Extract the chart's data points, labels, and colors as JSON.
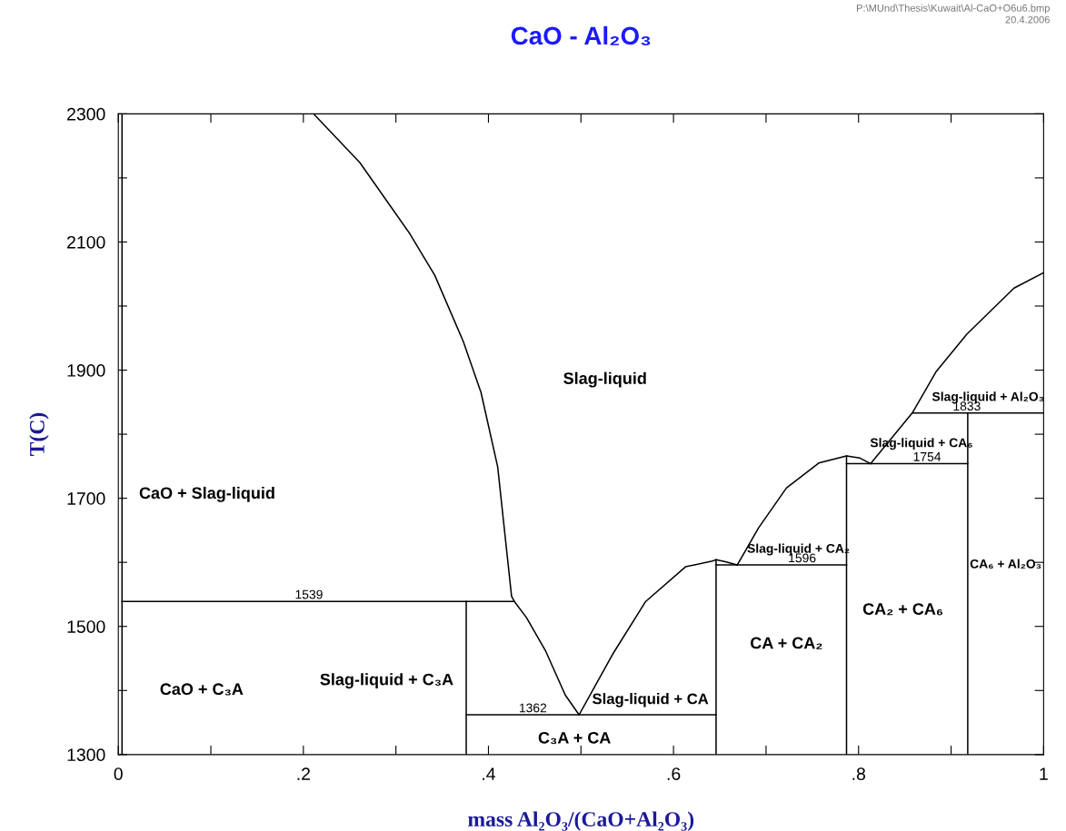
{
  "chart_data": {
    "type": "line",
    "title": "CaO - Al₂O₃",
    "xlabel": "mass Al₂O₃/(CaO+Al₂O₃)",
    "ylabel": "T(C)",
    "xlim": [
      0,
      1
    ],
    "ylim": [
      1300,
      2300
    ],
    "xticks": [
      {
        "value": 0,
        "label": "0"
      },
      {
        "value": 0.1,
        "label": null
      },
      {
        "value": 0.2,
        "label": ".2"
      },
      {
        "value": 0.3,
        "label": null
      },
      {
        "value": 0.4,
        "label": ".4"
      },
      {
        "value": 0.5,
        "label": null
      },
      {
        "value": 0.6,
        "label": ".6"
      },
      {
        "value": 0.7,
        "label": null
      },
      {
        "value": 0.8,
        "label": ".8"
      },
      {
        "value": 0.9,
        "label": null
      },
      {
        "value": 1,
        "label": "1"
      }
    ],
    "yticks": [
      1300,
      {
        "value": 1400,
        "label": null
      },
      1500,
      {
        "value": 1600,
        "label": null
      },
      1700,
      {
        "value": 1800,
        "label": null
      },
      1900,
      {
        "value": 2000,
        "label": null
      },
      2100,
      {
        "value": 2200,
        "label": null
      },
      2300
    ],
    "grid": false,
    "legend": false,
    "marker": "none",
    "line_style": "solid",
    "series": [
      {
        "color": "#000000",
        "x": [
          0.004,
          0.004
        ],
        "values": [
          1300,
          2300
        ]
      },
      {
        "color": "#000000",
        "x": [
          0.211,
          0.261,
          0.315,
          0.342,
          0.373,
          0.392,
          0.41,
          0.425,
          0.428,
          0.441,
          0.462,
          0.483,
          0.498
        ],
        "values": [
          2300,
          2224,
          2113,
          2048,
          1944,
          1865,
          1749,
          1547,
          1539,
          1514,
          1461,
          1393,
          1362
        ]
      },
      {
        "color": "#000000",
        "x": [
          0.498,
          0.534,
          0.57,
          0.613,
          0.642,
          0.646,
          0.656,
          0.669
        ],
        "values": [
          1362,
          1456,
          1539,
          1593,
          1602,
          1604,
          1601,
          1596
        ]
      },
      {
        "color": "#000000",
        "x": [
          0.669,
          0.692,
          0.722,
          0.757,
          0.787,
          0.801,
          0.813
        ],
        "values": [
          1596,
          1654,
          1716,
          1755,
          1766,
          1763,
          1754
        ]
      },
      {
        "color": "#000000",
        "x": [
          0.813,
          0.858,
          0.884,
          0.917,
          0.968,
          1.0
        ],
        "values": [
          1754,
          1833,
          1898,
          1956,
          2028,
          2052
        ]
      },
      {
        "color": "#000000",
        "x": [
          0.004,
          0.428
        ],
        "values": [
          1539,
          1539
        ]
      },
      {
        "color": "#000000",
        "x": [
          0.376,
          0.376
        ],
        "values": [
          1300,
          1539
        ]
      },
      {
        "color": "#000000",
        "x": [
          0.376,
          0.646
        ],
        "values": [
          1362,
          1362
        ]
      },
      {
        "color": "#000000",
        "x": [
          0.646,
          0.646
        ],
        "values": [
          1300,
          1604
        ]
      },
      {
        "color": "#000000",
        "x": [
          0.646,
          0.787
        ],
        "values": [
          1596,
          1596
        ]
      },
      {
        "color": "#000000",
        "x": [
          0.787,
          0.787
        ],
        "values": [
          1300,
          1766
        ]
      },
      {
        "color": "#000000",
        "x": [
          0.787,
          0.918
        ],
        "values": [
          1754,
          1754
        ]
      },
      {
        "color": "#000000",
        "x": [
          0.918,
          0.918
        ],
        "values": [
          1300,
          1833
        ]
      },
      {
        "color": "#000000",
        "x": [
          0.858,
          1.0
        ],
        "values": [
          1833,
          1833
        ]
      }
    ],
    "annotations": [
      "Slag-liquid",
      "CaO + Slag-liquid",
      "CaO + C₃A",
      "Slag-liquid + C₃A",
      "Slag-liquid + CA",
      "C₃A + CA",
      "CA + CA₂",
      "CA₂ + CA₆",
      "CA₆ + Al₂O₃",
      "Slag-liquid + CA₂",
      "Slag-liquid + CA₆",
      "Slag-liquid + Al₂O₃",
      {
        "text": "1539",
        "x": 0.206,
        "y": 1539
      },
      {
        "text": "1362",
        "x": 0.448,
        "y": 1362
      },
      {
        "text": "1596",
        "x": 0.739,
        "y": 1596
      },
      {
        "text": "1754",
        "x": 0.874,
        "y": 1754
      },
      {
        "text": "1833",
        "x": 0.917,
        "y": 1833
      },
      "P:\\MUnd\\Thesis\\Kuwait\\Al-CaO+O6u6.bmp",
      "20.4.2006"
    ]
  }
}
